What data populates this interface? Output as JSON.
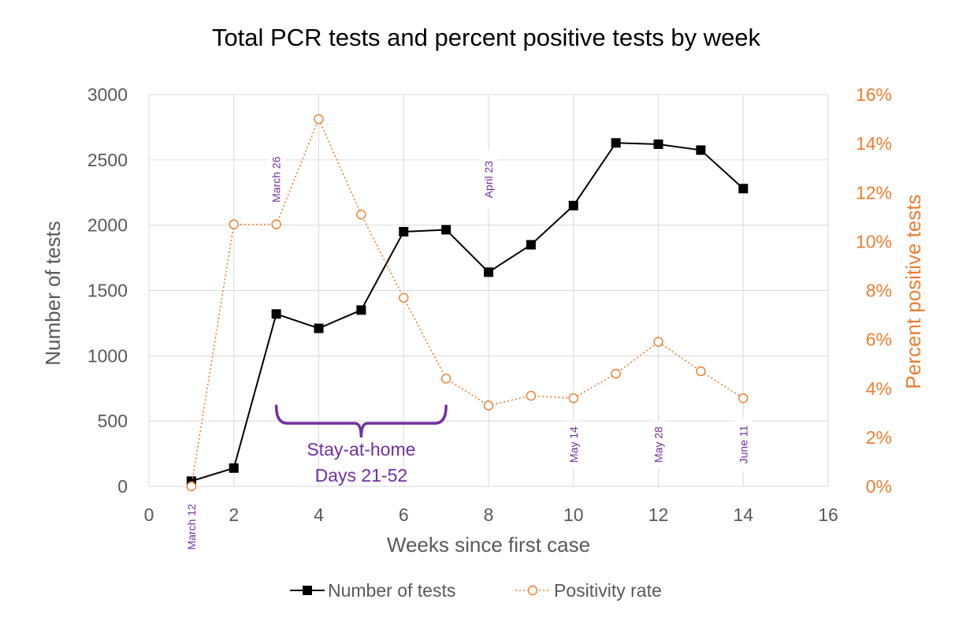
{
  "colors": {
    "tests": "#000000",
    "positivity": "#ED7D31",
    "annotation": "#7030A0",
    "grid": "#D9D9D9",
    "axis_text": "#595959"
  },
  "chart_data": {
    "type": "line",
    "title": "Total PCR tests and percent positive tests by week",
    "xlabel": "Weeks since first case",
    "ylabel": "Number of tests",
    "ylabel_right": "Percent positive tests",
    "xlim": [
      0,
      16
    ],
    "ylim": [
      0,
      3000
    ],
    "ylim_right": [
      0,
      16
    ],
    "x_ticks": [
      "0",
      "2",
      "4",
      "6",
      "8",
      "10",
      "12",
      "14",
      "16"
    ],
    "y_ticks": [
      "0",
      "500",
      "1000",
      "1500",
      "2000",
      "2500",
      "3000"
    ],
    "y_ticks_right": [
      "0%",
      "2%",
      "4%",
      "6%",
      "8%",
      "10%",
      "12%",
      "14%",
      "16%"
    ],
    "grid": true,
    "legend_position": "bottom",
    "series": [
      {
        "name": "Number of tests",
        "axis": "left",
        "marker": "square",
        "line": "solid",
        "x": [
          1,
          2,
          3,
          4,
          5,
          6,
          7,
          8,
          9,
          10,
          11,
          12,
          13,
          14
        ],
        "values": [
          40,
          140,
          1320,
          1210,
          1350,
          1950,
          1965,
          1640,
          1850,
          2150,
          2630,
          2620,
          2575,
          2280
        ]
      },
      {
        "name": "Positivity rate",
        "axis": "right",
        "marker": "circle",
        "line": "dotted",
        "x": [
          1,
          2,
          3,
          4,
          5,
          6,
          7,
          8,
          9,
          10,
          11,
          12,
          13,
          14
        ],
        "values": [
          0.0,
          10.7,
          10.7,
          15.0,
          11.1,
          7.7,
          4.4,
          3.3,
          3.7,
          3.6,
          4.6,
          5.9,
          4.7,
          3.6
        ]
      }
    ],
    "date_labels": [
      {
        "text": "March 12",
        "x": 1,
        "y": -310
      },
      {
        "text": "March 26",
        "x": 3,
        "y": 2350
      },
      {
        "text": "April 23",
        "x": 8,
        "y": 2350
      },
      {
        "text": "May 14",
        "x": 10,
        "y": 320
      },
      {
        "text": "May 28",
        "x": 12,
        "y": 320
      },
      {
        "text": "June 11",
        "x": 14,
        "y": 320
      }
    ],
    "annotation": {
      "text_lines": [
        "Stay-at-home",
        "Days 21-52"
      ],
      "x_start": 3,
      "x_end": 7
    }
  }
}
